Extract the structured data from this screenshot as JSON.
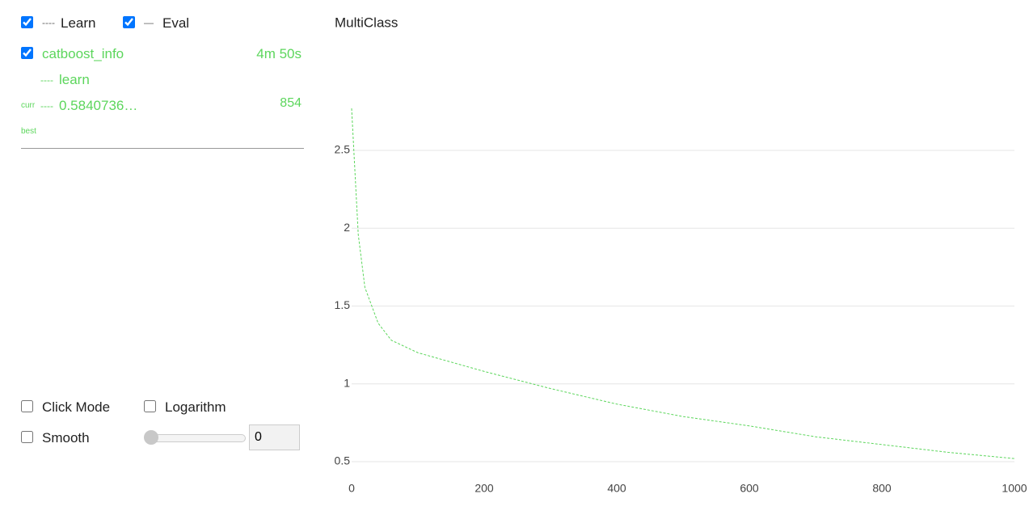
{
  "legend": {
    "learn": "Learn",
    "eval": "Eval"
  },
  "run": {
    "name": "catboost_info",
    "time": "4m 50s",
    "metric": "learn",
    "curr_label": "curr",
    "curr_value": "0.5840736…",
    "curr_iteration": 854,
    "best_label": "best"
  },
  "controls": {
    "click_mode": "Click Mode",
    "logarithm": "Logarithm",
    "smooth": "Smooth",
    "smooth_value": 0
  },
  "chart_data": {
    "type": "line",
    "title": "MultiClass",
    "x": [
      0,
      10,
      20,
      40,
      60,
      100,
      200,
      300,
      400,
      500,
      600,
      700,
      800,
      900,
      1000
    ],
    "series": [
      {
        "color": "#5cd65c",
        "values": [
          2.77,
          1.96,
          1.62,
          1.39,
          1.28,
          1.2,
          1.08,
          0.97,
          0.87,
          0.79,
          0.73,
          0.66,
          0.61,
          0.56,
          0.52
        ]
      }
    ],
    "xlim": [
      0,
      1000
    ],
    "ylim": [
      0.4,
      2.8
    ],
    "xticks": [
      0,
      200,
      400,
      600,
      800,
      1000
    ],
    "yticks": [
      0.5,
      1,
      1.5,
      2,
      2.5
    ],
    "grid": true
  }
}
